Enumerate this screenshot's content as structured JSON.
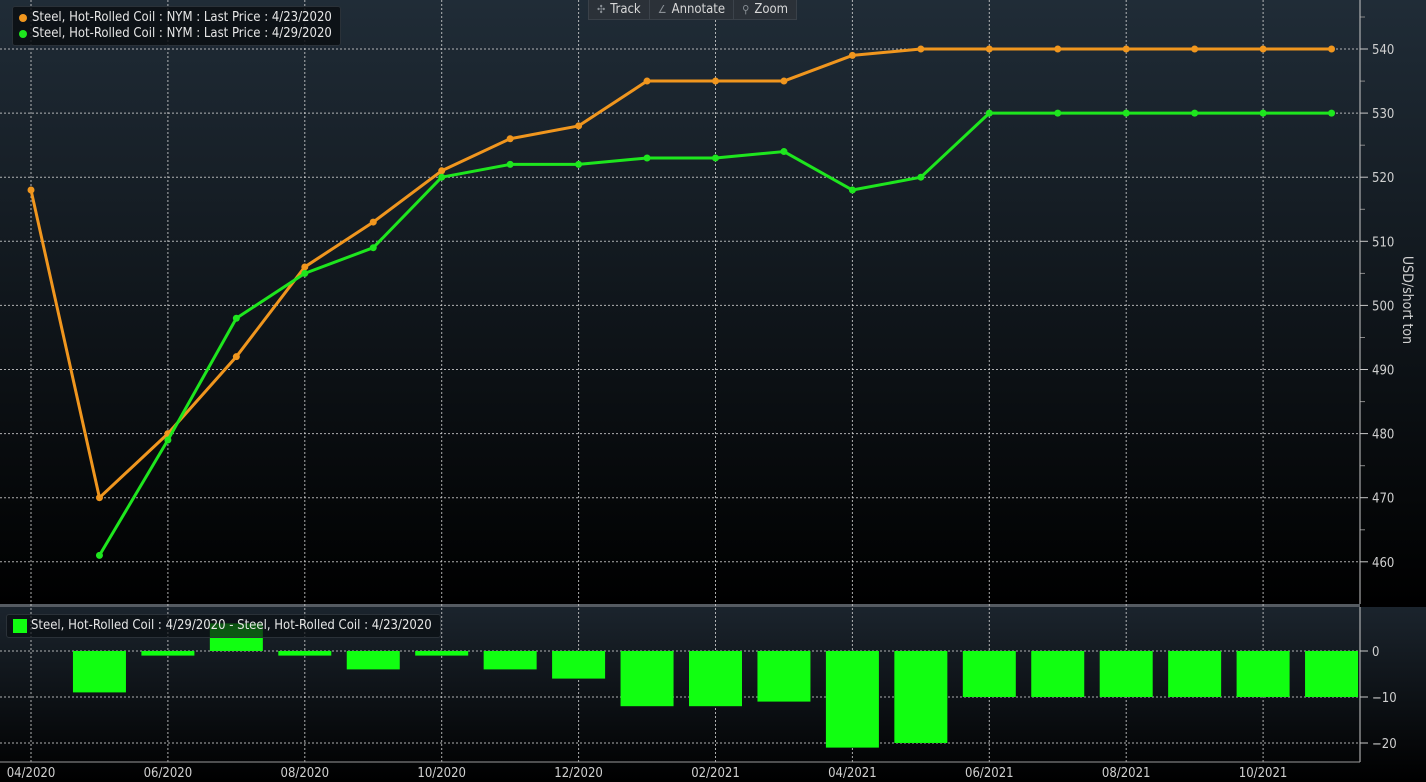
{
  "toolbar": {
    "track": "Track",
    "annotate": "Annotate",
    "zoom": "Zoom"
  },
  "colors": {
    "series1": "#f0961e",
    "series2": "#1ee61e",
    "diff": "#11ff11"
  },
  "chart_data": [
    {
      "type": "line",
      "title": "",
      "ylabel": "USD/short ton",
      "ylim": [
        455,
        548
      ],
      "yticks": [
        "460",
        "470",
        "480",
        "490",
        "500",
        "510",
        "520",
        "530",
        "540"
      ],
      "grid": true,
      "legend_position": "top-left",
      "x": [
        "04/2020",
        "05/2020",
        "06/2020",
        "07/2020",
        "08/2020",
        "09/2020",
        "10/2020",
        "11/2020",
        "12/2020",
        "01/2021",
        "02/2021",
        "03/2021",
        "04/2021",
        "05/2021",
        "06/2021",
        "07/2021",
        "08/2021",
        "09/2021",
        "10/2021",
        "11/2021"
      ],
      "series": [
        {
          "name": "Steel, Hot-Rolled Coil : NYM : Last Price : 4/23/2020",
          "color": "#f0961e",
          "values": [
            518,
            470,
            480,
            492,
            506,
            513,
            521,
            526,
            528,
            535,
            535,
            535,
            539,
            540,
            540,
            540,
            540,
            540,
            540,
            540
          ]
        },
        {
          "name": "Steel, Hot-Rolled Coil : NYM : Last Price : 4/29/2020",
          "color": "#1ee61e",
          "values": [
            null,
            461,
            479,
            498,
            505,
            509,
            520,
            522,
            522,
            523,
            523,
            524,
            518,
            520,
            530,
            530,
            530,
            530,
            530,
            530
          ]
        }
      ]
    },
    {
      "type": "bar",
      "legend": "Steel, Hot-Rolled Coil : 4/29/2020 - Steel, Hot-Rolled Coil : 4/23/2020",
      "ylim": [
        -23,
        8
      ],
      "yticks": [
        "0",
        "-10",
        "-20"
      ],
      "x": [
        "05/2020",
        "06/2020",
        "07/2020",
        "08/2020",
        "09/2020",
        "10/2020",
        "11/2020",
        "12/2020",
        "01/2021",
        "02/2021",
        "03/2021",
        "04/2021",
        "05/2021",
        "06/2021",
        "07/2021",
        "08/2021",
        "09/2021",
        "10/2021",
        "11/2021"
      ],
      "values": [
        -9,
        -1,
        6,
        -1,
        -4,
        -1,
        -4,
        -6,
        -12,
        -12,
        -11,
        -21,
        -20,
        -10,
        -10,
        -10,
        -10,
        -10,
        -10
      ]
    }
  ],
  "xaxis_labels": [
    "04/2020",
    "06/2020",
    "08/2020",
    "10/2020",
    "12/2020",
    "02/2021",
    "04/2021",
    "06/2021",
    "08/2021",
    "10/2021"
  ]
}
